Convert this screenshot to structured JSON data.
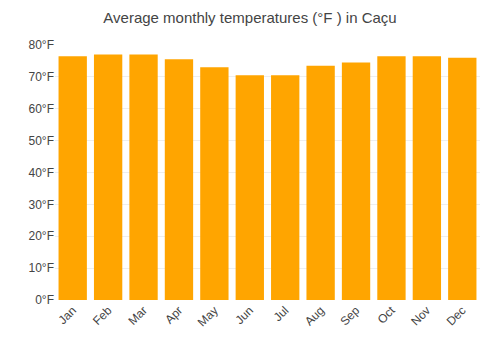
{
  "chart_data": {
    "type": "bar",
    "title": "Average monthly temperatures (°F ) in Caçu",
    "categories": [
      "Jan",
      "Feb",
      "Mar",
      "Apr",
      "May",
      "Jun",
      "Jul",
      "Aug",
      "Sep",
      "Oct",
      "Nov",
      "Dec"
    ],
    "values": [
      76.5,
      77.0,
      77.0,
      75.5,
      73.0,
      70.5,
      70.5,
      73.5,
      74.5,
      76.5,
      76.5,
      76.0
    ],
    "color": "#FFA500",
    "ylim": [
      0,
      80
    ],
    "yticks": [
      {
        "value": 0,
        "label": "0°F"
      },
      {
        "value": 10,
        "label": "10°F"
      },
      {
        "value": 20,
        "label": "20°F"
      },
      {
        "value": 30,
        "label": "30°F"
      },
      {
        "value": 40,
        "label": "40°F"
      },
      {
        "value": 50,
        "label": "50°F"
      },
      {
        "value": 60,
        "label": "60°F"
      },
      {
        "value": 70,
        "label": "70°F"
      },
      {
        "value": 80,
        "label": "80°F"
      }
    ],
    "grid": true
  }
}
